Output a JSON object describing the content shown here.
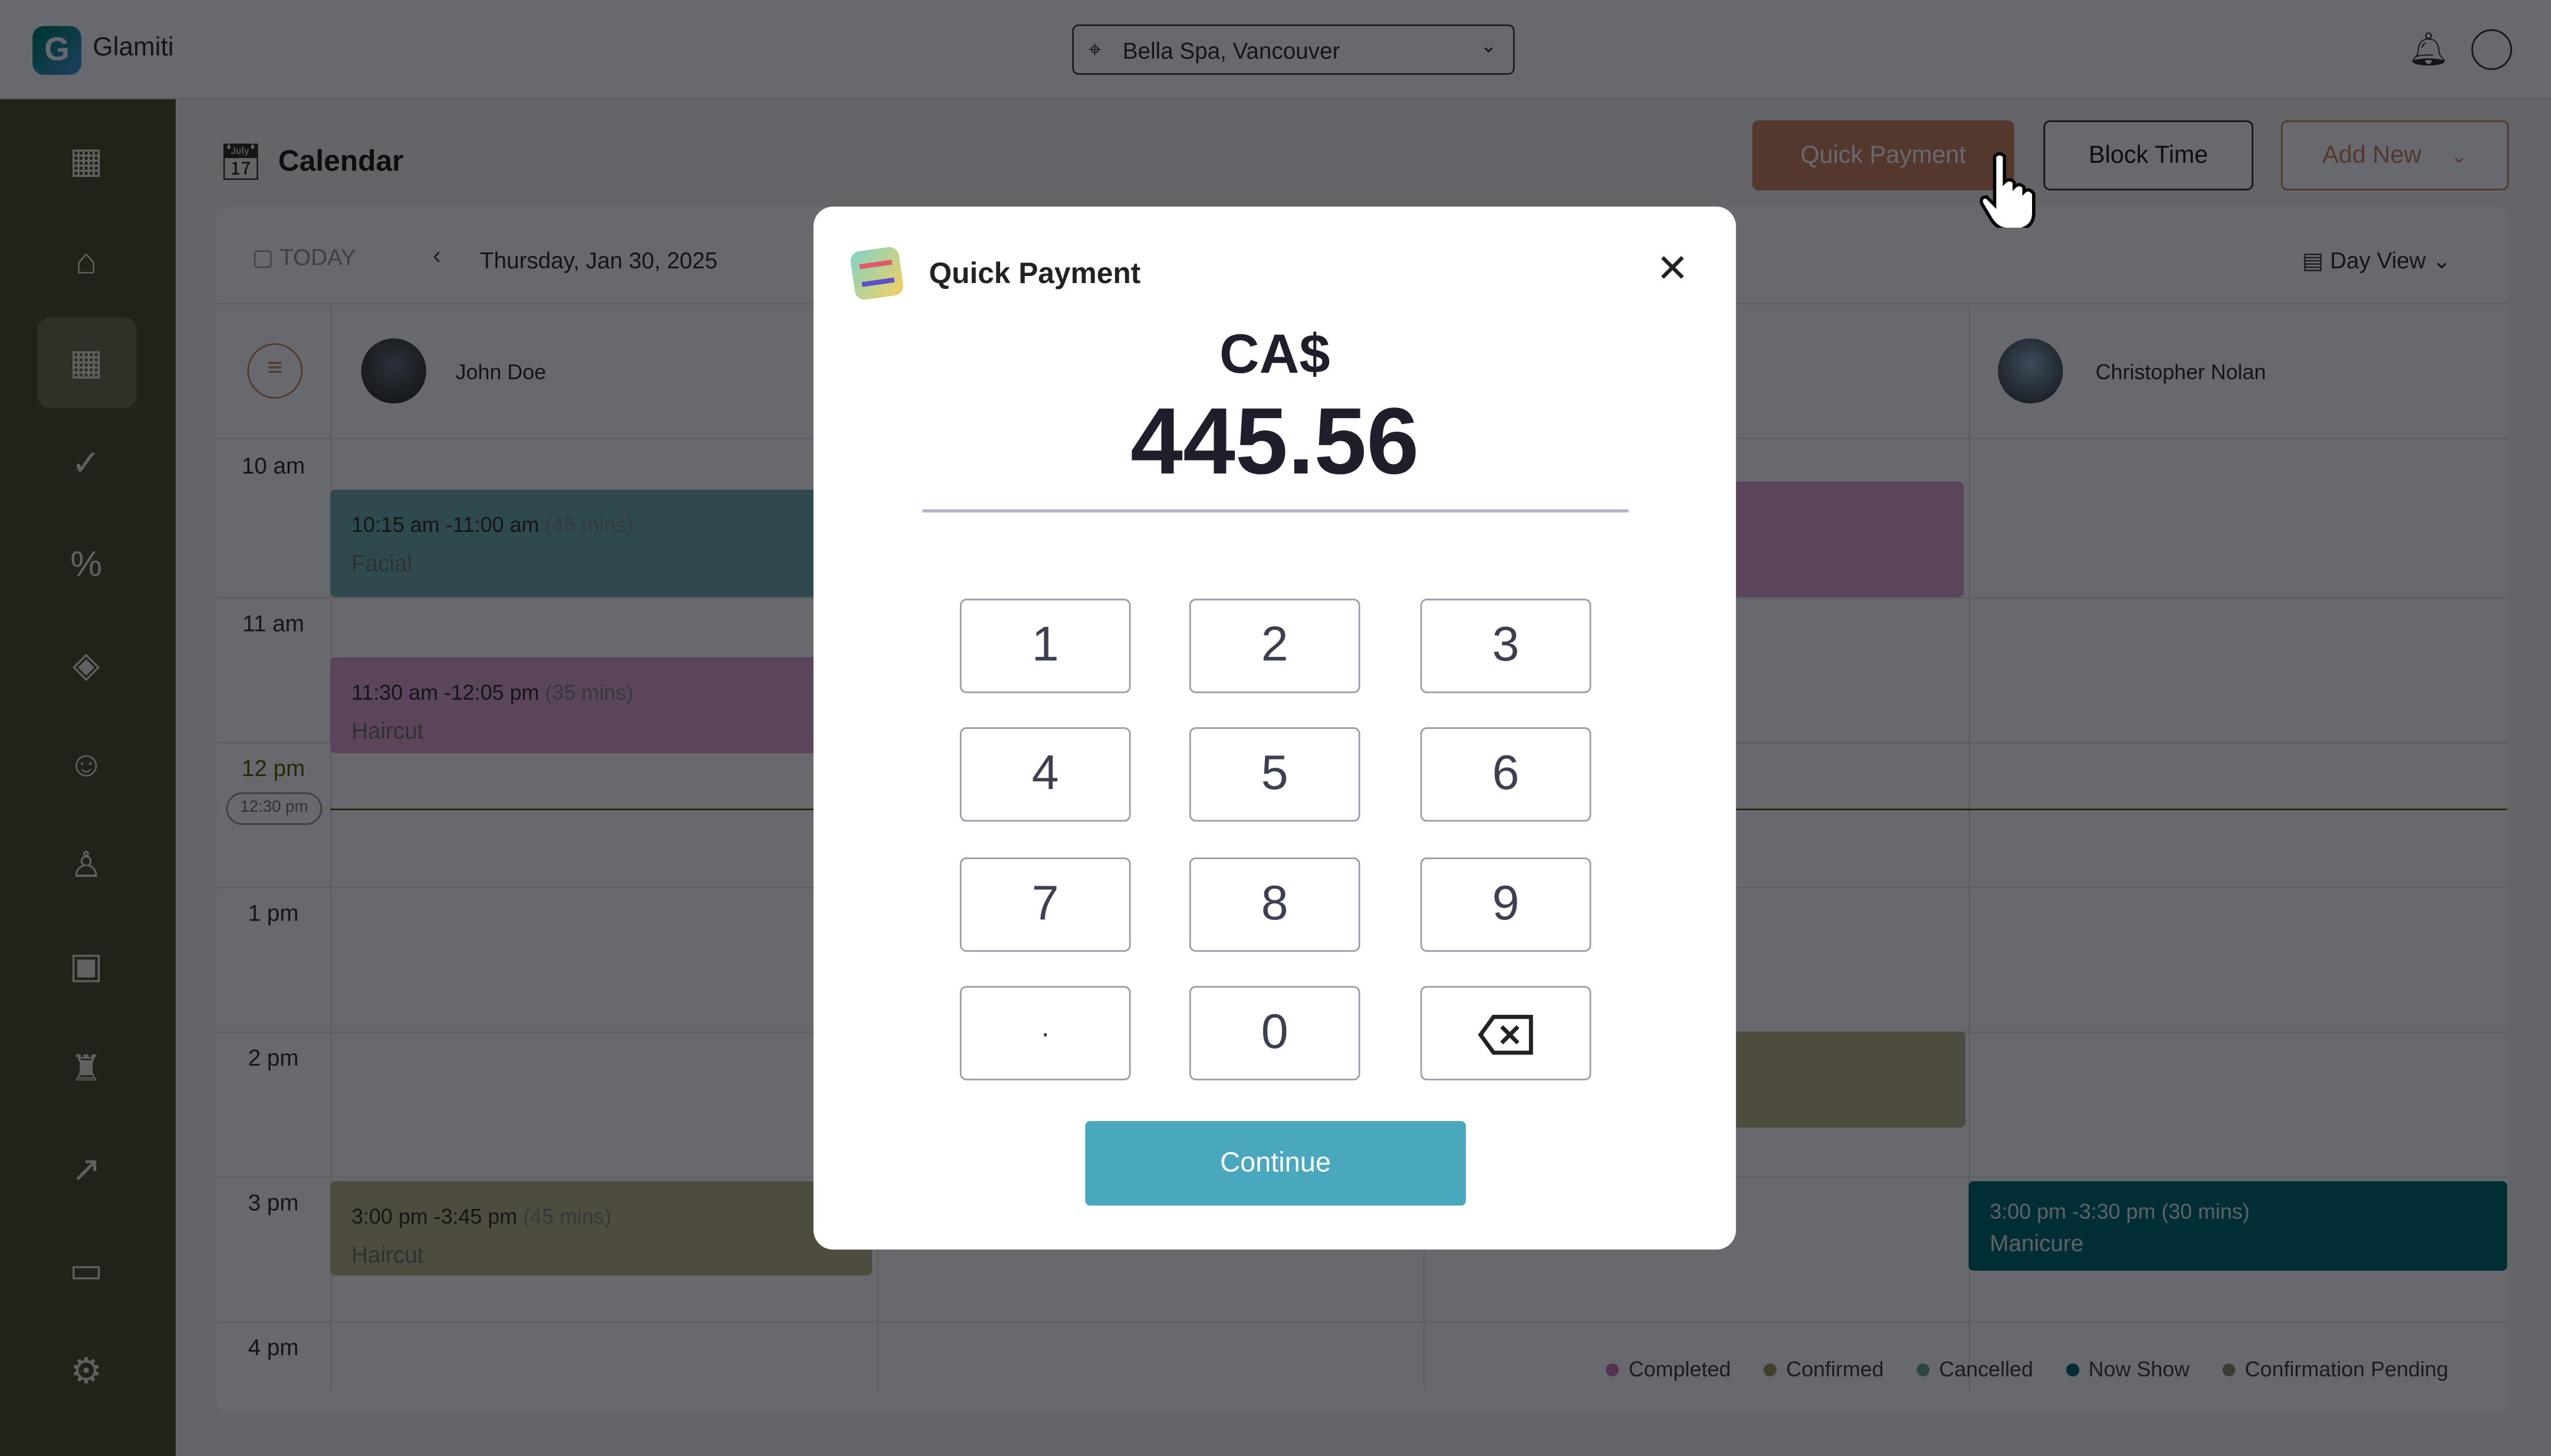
{
  "app": {
    "name": "Glamiti",
    "logo_letter": "G",
    "location": "Bella Spa, Vancouver"
  },
  "sidebar": {
    "items": [
      "dashboard",
      "store",
      "calendar",
      "appointments",
      "offers",
      "services",
      "clients",
      "staff",
      "wallet",
      "products",
      "reports",
      "payments",
      "settings"
    ],
    "active": "calendar"
  },
  "header": {
    "title": "Calendar",
    "quick_payment": "Quick Payment",
    "block_time": "Block Time",
    "add_new": "Add New"
  },
  "calendar": {
    "today": "TODAY",
    "date": "Thursday, Jan 30, 2025",
    "view": "Day View",
    "staff": [
      "John Doe",
      "Christopher Nolan"
    ],
    "hours": [
      "10 am",
      "11 am",
      "12 pm",
      "1 pm",
      "2 pm",
      "3 pm",
      "4 pm"
    ],
    "current_time": "12:30 pm",
    "events": [
      {
        "time": "10:15 am -11:00 am",
        "duration": "(45 mins)",
        "service": "Facial",
        "status": "Cancelled",
        "color": "#e8929c"
      },
      {
        "time": "11:30 am -12:05 pm",
        "duration": "(35 mins)",
        "service": "Haircut",
        "status": "Completed",
        "color": "#8cc98e"
      },
      {
        "time": "3:00 pm -3:45 pm",
        "duration": "(45 mins)",
        "service": "Haircut",
        "status": "Confirmed",
        "color": "#a5b8e6"
      },
      {
        "time": "3:00 pm -3:30 pm",
        "duration": "(30 mins)",
        "service": "Manicure",
        "status": "Now Show",
        "color": "#c8383f"
      }
    ],
    "legend": [
      {
        "label": "Completed",
        "color": "#4caf50"
      },
      {
        "label": "Confirmed",
        "color": "#7e98d8"
      },
      {
        "label": "Cancelled",
        "color": "#d887a0"
      },
      {
        "label": "Now Show",
        "color": "#d42a2a"
      },
      {
        "label": "Confirmation Pending",
        "color": "#8a8ea0"
      }
    ]
  },
  "modal": {
    "title": "Quick Payment",
    "currency": "CA$",
    "amount": "445.56",
    "keys": [
      "1",
      "2",
      "3",
      "4",
      "5",
      "6",
      "7",
      "8",
      "9",
      "·",
      "0",
      "backspace"
    ],
    "continue": "Continue"
  },
  "colors": {
    "accent": "#4aa8be",
    "sidebar": "#272b3d"
  }
}
